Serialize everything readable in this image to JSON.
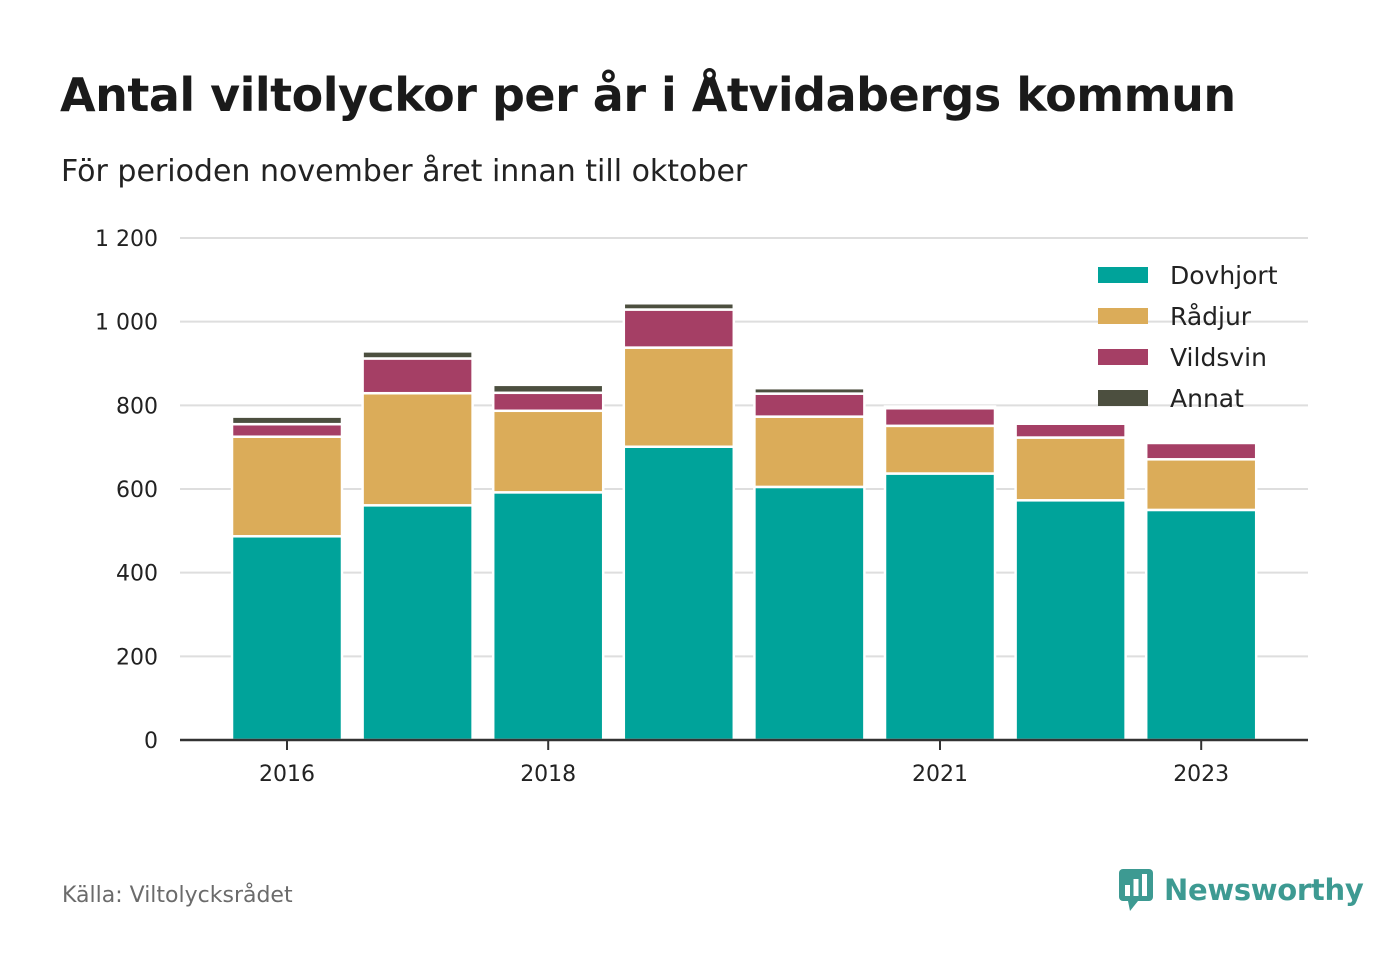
{
  "title": "Antal viltolyckor per år i Åtvidabergs kommun",
  "subtitle": "För perioden november året innan till oktober",
  "source": "Källa: Viltolycksrådet",
  "brand": {
    "name": "Newsworthy",
    "icon": "newsworthy-logo-icon",
    "color": "#3d9a92"
  },
  "chart_data": {
    "type": "bar",
    "stacked": true,
    "categories": [
      "2016",
      "2017",
      "2018",
      "2019",
      "2020",
      "2021",
      "2022",
      "2023"
    ],
    "x_tick_labels": [
      "2016",
      "",
      "2018",
      "",
      "",
      "2021",
      "",
      "2023"
    ],
    "series": [
      {
        "name": "Dovhjort",
        "color": "#00a39a",
        "values": [
          487,
          561,
          592,
          701,
          605,
          637,
          573,
          550
        ]
      },
      {
        "name": "Rådjur",
        "color": "#dbac59",
        "values": [
          238,
          268,
          195,
          237,
          168,
          114,
          150,
          121
        ]
      },
      {
        "name": "Vildsvin",
        "color": "#a53f65",
        "values": [
          30,
          83,
          43,
          91,
          55,
          42,
          33,
          39
        ]
      },
      {
        "name": "Annat",
        "color": "#4c4f3f",
        "values": [
          18,
          17,
          19,
          15,
          13,
          4,
          1,
          0
        ]
      }
    ],
    "ylim": [
      0,
      1200
    ],
    "yticks": [
      0,
      200,
      400,
      600,
      800,
      1000,
      1200
    ],
    "ytick_labels": [
      "0",
      "200",
      "400",
      "600",
      "800",
      "1 000",
      "1 200"
    ],
    "grid": true,
    "legend_position": "top-right"
  }
}
